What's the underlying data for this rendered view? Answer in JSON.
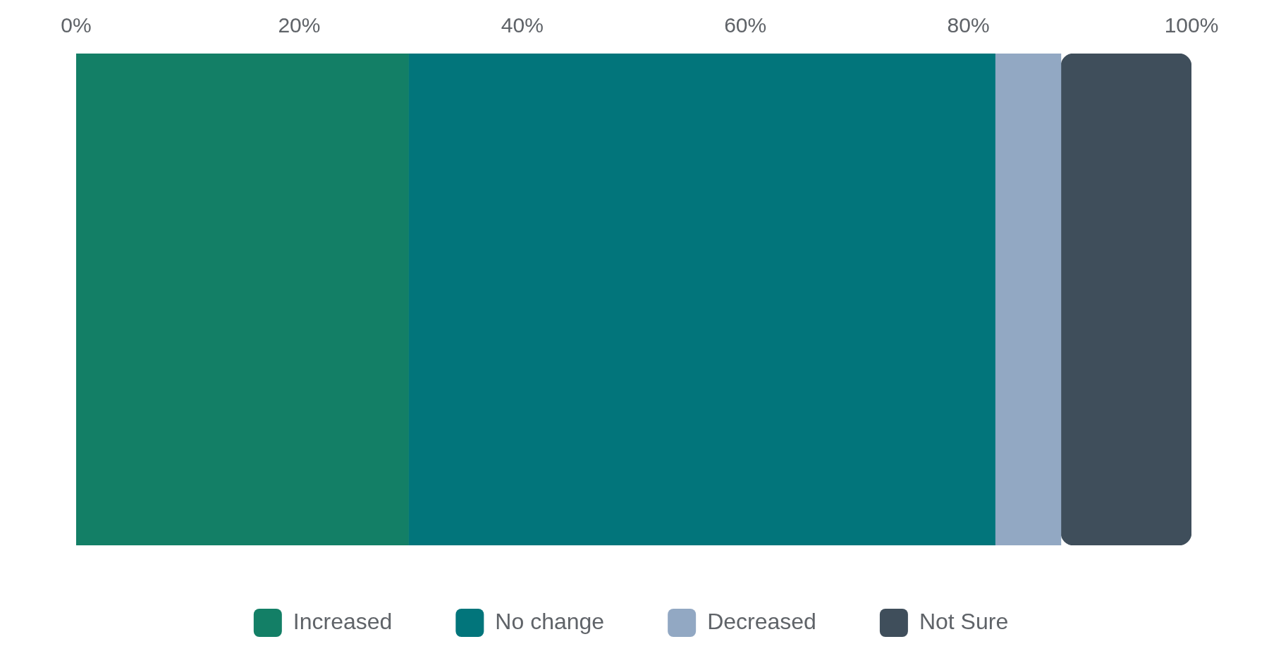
{
  "chart_data": {
    "type": "bar",
    "orientation": "horizontal",
    "stacked": true,
    "categories": [
      null
    ],
    "series": [
      {
        "name": "Increased",
        "color": "#137f66",
        "values": [
          29.8
        ]
      },
      {
        "name": "No change",
        "color": "#02757b",
        "values": [
          52.6
        ]
      },
      {
        "name": "Decreased",
        "color": "#92a8c3",
        "values": [
          5.9
        ]
      },
      {
        "name": "Not Sure",
        "color": "#3f4e5b",
        "values": [
          11.7
        ]
      }
    ],
    "xlim": [
      0,
      100
    ],
    "xticks": [
      {
        "value": 0,
        "label": "0%"
      },
      {
        "value": 20,
        "label": "20%"
      },
      {
        "value": 40,
        "label": "40%"
      },
      {
        "value": 60,
        "label": "60%"
      },
      {
        "value": 80,
        "label": "80%"
      },
      {
        "value": 100,
        "label": "100%"
      }
    ],
    "tick_labels": "x",
    "grid": false,
    "legend": "bottom"
  }
}
